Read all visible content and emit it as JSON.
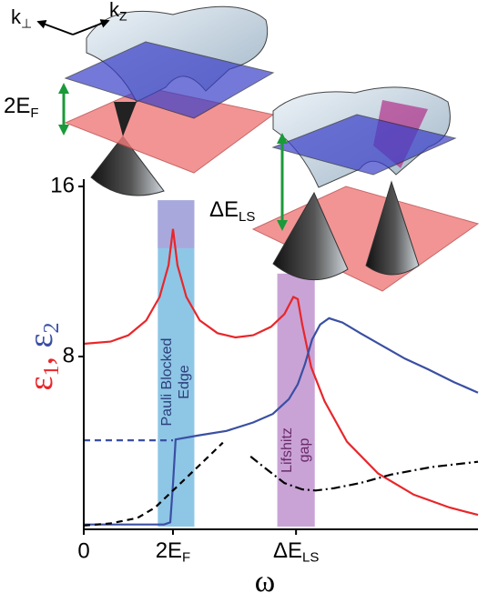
{
  "chart_data": {
    "type": "line",
    "xlim": [
      0,
      4.42
    ],
    "ylim": [
      0,
      16
    ],
    "xticks": [
      0,
      {
        "value": 1,
        "label": "2E",
        "sub": "F"
      },
      {
        "value": 2.38,
        "label": "ΔE",
        "sub": "LS"
      }
    ],
    "yticks": [
      8,
      16
    ],
    "xlabel": "ω",
    "ylabel_separator": ", ",
    "series": [
      {
        "name": "ε",
        "sub": "1",
        "color": "#e8262a",
        "x": [
          0,
          0.3,
          0.5,
          0.7,
          0.85,
          0.95,
          1.0,
          1.05,
          1.15,
          1.3,
          1.5,
          1.7,
          1.9,
          2.1,
          2.25,
          2.35,
          2.4,
          2.45,
          2.55,
          2.7,
          2.95,
          3.3,
          3.7,
          4.1,
          4.42
        ],
        "values": [
          8.6,
          8.7,
          9.0,
          9.7,
          10.8,
          12.3,
          14.0,
          12.3,
          10.8,
          9.7,
          9.1,
          8.9,
          9.0,
          9.4,
          10.0,
          10.8,
          10.7,
          9.5,
          7.5,
          5.9,
          4.0,
          2.5,
          1.5,
          0.9,
          0.55
        ]
      },
      {
        "name": "ε",
        "sub": "2",
        "color": "#3a4fa3",
        "x": [
          0,
          0.9,
          0.97,
          1.0,
          1.03,
          1.3,
          1.6,
          1.9,
          2.12,
          2.3,
          2.4,
          2.48,
          2.56,
          2.65,
          2.75,
          2.9,
          3.1,
          3.35,
          3.6,
          3.86,
          4.15,
          4.42
        ],
        "values": [
          0.1,
          0.1,
          0.2,
          2.0,
          4.1,
          4.3,
          4.5,
          4.9,
          5.3,
          6.0,
          6.7,
          7.65,
          8.8,
          9.5,
          9.8,
          9.6,
          9.1,
          8.5,
          7.9,
          7.4,
          6.8,
          6.3
        ]
      },
      {
        "color": "#3a4fa3",
        "dash": "dashed",
        "x": [
          0,
          1.0
        ],
        "values": [
          4.06,
          4.06
        ]
      },
      {
        "color": "#000000",
        "dash": "dashed",
        "x": [
          0,
          0.3,
          0.6,
          0.8,
          1.0,
          1.2,
          1.4,
          1.56
        ],
        "values": [
          0.05,
          0.15,
          0.4,
          0.9,
          1.7,
          2.5,
          3.3,
          3.95
        ]
      },
      {
        "color": "#000000",
        "dash": "dashdot",
        "x": [
          1.87,
          2.05,
          2.25,
          2.45,
          2.6,
          2.8,
          3.1,
          3.45,
          3.9,
          4.42
        ],
        "values": [
          3.3,
          2.7,
          2.05,
          1.75,
          1.7,
          1.8,
          2.05,
          2.45,
          2.8,
          3.05
        ]
      }
    ],
    "regions": [
      {
        "x": [
          0.83,
          1.24
        ],
        "y": [
          0,
          15.35
        ],
        "cap_y": [
          13.1,
          15.35
        ],
        "color": "#8ec6e6",
        "cap_color": "#a9a8dc",
        "text_color": "#2c3e7a",
        "lines": [
          "Pauli Blocked",
          "Edge"
        ]
      },
      {
        "x": [
          2.17,
          2.59
        ],
        "y": [
          0,
          11.9
        ],
        "color": "#c9a3d6",
        "text_color": "#6a2a6a",
        "lines": [
          "Lifshitz",
          "gap"
        ]
      }
    ],
    "k_axes": [
      {
        "text": "k",
        "sub": "⊥"
      },
      {
        "text": "k",
        "sub": "Z"
      }
    ],
    "annotations": [
      {
        "text": "2E",
        "sub": "F"
      },
      {
        "text": "ΔE",
        "sub": "LS"
      }
    ]
  }
}
